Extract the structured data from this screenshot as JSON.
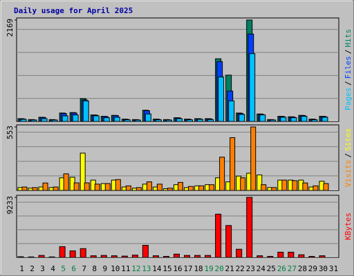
{
  "chart_data": [
    {
      "type": "bar",
      "title": "Daily usage for April 2025",
      "legend_separator": "/",
      "series": [
        {
          "name": "Hits",
          "color": "#008060",
          "values": [
            60,
            40,
            90,
            40,
            180,
            190,
            490,
            140,
            110,
            130,
            50,
            40,
            240,
            50,
            40,
            80,
            50,
            60,
            60,
            1340,
            990,
            180,
            2169,
            160,
            40,
            110,
            100,
            130,
            50,
            110,
            null
          ]
        },
        {
          "name": "Files",
          "color": "#0040ff",
          "values": [
            55,
            35,
            85,
            35,
            170,
            180,
            460,
            135,
            105,
            125,
            45,
            35,
            230,
            45,
            35,
            75,
            45,
            55,
            55,
            1280,
            650,
            170,
            1870,
            150,
            35,
            105,
            95,
            125,
            45,
            105,
            null
          ]
        },
        {
          "name": "Pages",
          "color": "#00c0ff",
          "values": [
            45,
            30,
            60,
            30,
            120,
            140,
            440,
            120,
            80,
            90,
            35,
            30,
            160,
            35,
            30,
            60,
            35,
            45,
            40,
            950,
            440,
            150,
            1450,
            140,
            30,
            90,
            80,
            110,
            35,
            90,
            null
          ]
        }
      ],
      "ylim": [
        0,
        2169
      ],
      "yticks": [
        2169
      ]
    },
    {
      "type": "bar",
      "legend_separator": "/",
      "series": [
        {
          "name": "Sites",
          "color": "#ffff00",
          "values": [
            25,
            20,
            30,
            25,
            110,
            115,
            325,
            90,
            60,
            90,
            30,
            20,
            55,
            30,
            15,
            50,
            25,
            40,
            50,
            110,
            75,
            125,
            150,
            135,
            25,
            90,
            90,
            90,
            30,
            80,
            null
          ]
        },
        {
          "name": "Visits",
          "color": "#ff8000",
          "values": [
            30,
            25,
            65,
            30,
            145,
            66,
            66,
            55,
            60,
            95,
            40,
            25,
            75,
            55,
            20,
            70,
            35,
            40,
            50,
            290,
            460,
            110,
            553,
            50,
            25,
            90,
            85,
            65,
            40,
            60,
            null
          ]
        }
      ],
      "ylim": [
        0,
        553
      ],
      "yticks": [
        553
      ]
    },
    {
      "type": "bar",
      "series": [
        {
          "name": "KBytes",
          "color": "#ff0000",
          "values": [
            100,
            80,
            300,
            80,
            1650,
            1000,
            1350,
            250,
            300,
            250,
            200,
            350,
            1850,
            250,
            150,
            500,
            300,
            300,
            300,
            6650,
            4900,
            1250,
            9233,
            250,
            150,
            800,
            800,
            400,
            150,
            250,
            null
          ]
        }
      ],
      "ylim": [
        0,
        9233
      ],
      "yticks": [
        9233
      ],
      "categories": [
        "1",
        "2",
        "3",
        "4",
        "5",
        "6",
        "7",
        "8",
        "9",
        "10",
        "11",
        "12",
        "13",
        "14",
        "15",
        "16",
        "17",
        "18",
        "19",
        "20",
        "21",
        "22",
        "23",
        "24",
        "25",
        "26",
        "27",
        "28",
        "29",
        "30",
        "31"
      ],
      "highlight": [
        4,
        5,
        11,
        12,
        18,
        19,
        25,
        26
      ],
      "highlight_color": "#008040"
    }
  ]
}
